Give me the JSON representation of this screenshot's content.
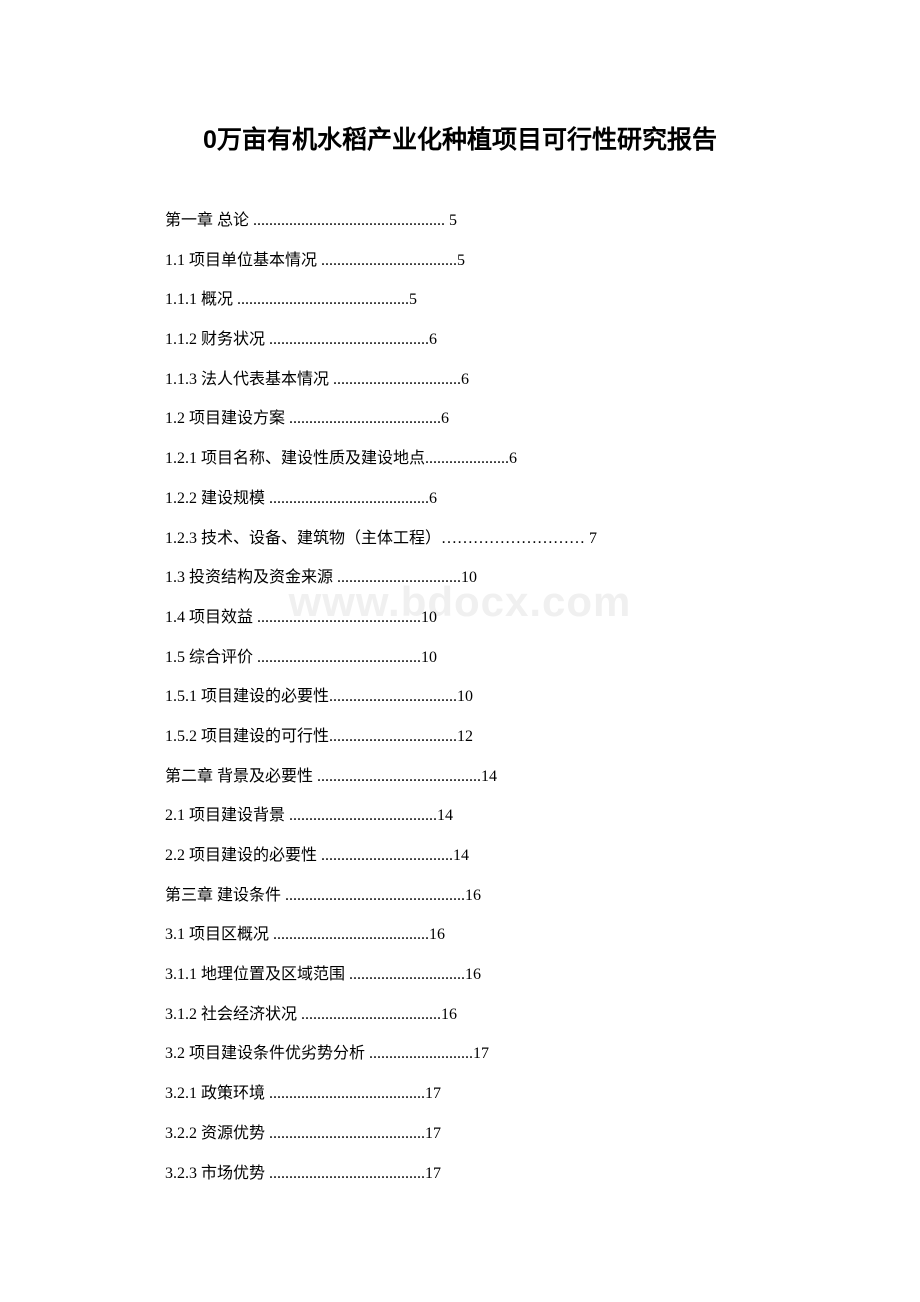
{
  "document": {
    "title": "0万亩有机水稻产业化种植项目可行性研究报告",
    "watermark": "www.bdocx.com",
    "background_color": "#ffffff",
    "text_color": "#000000",
    "watermark_color": "#f0f0f0",
    "title_fontsize": 25,
    "body_fontsize": 16
  },
  "toc": [
    {
      "text": "第一章 总论 ................................................ 5"
    },
    {
      "text": "1.1 项目单位基本情况 ..................................5"
    },
    {
      "text": "1.1.1 概况 ...........................................5"
    },
    {
      "text": "1.1.2 财务状况 ........................................6"
    },
    {
      "text": "1.1.3 法人代表基本情况 ................................6"
    },
    {
      "text": "1.2 项目建设方案 ......................................6"
    },
    {
      "text": "1.2.1 项目名称、建设性质及建设地点.....................6"
    },
    {
      "text": "1.2.2 建设规模 ........................................6"
    },
    {
      "text": "1.2.3 技术、设备、建筑物（主体工程）……………………… 7"
    },
    {
      "text": "1.3 投资结构及资金来源 ...............................10"
    },
    {
      "text": "1.4 项目效益 .........................................10"
    },
    {
      "text": "1.5 综合评价 .........................................10"
    },
    {
      "text": "1.5.1 项目建设的必要性................................10"
    },
    {
      "text": "1.5.2 项目建设的可行性................................12"
    },
    {
      "text": "第二章 背景及必要性 .........................................14"
    },
    {
      "text": "2.1 项目建设背景 .....................................14"
    },
    {
      "text": "2.2 项目建设的必要性 .................................14"
    },
    {
      "text": "第三章 建设条件 .............................................16"
    },
    {
      "text": "3.1 项目区概况 .......................................16"
    },
    {
      "text": "3.1.1 地理位置及区域范围 .............................16"
    },
    {
      "text": "3.1.2 社会经济状况 ...................................16"
    },
    {
      "text": "3.2 项目建设条件优劣势分析 ..........................17"
    },
    {
      "text": "3.2.1 政策环境 .......................................17"
    },
    {
      "text": "3.2.2 资源优势 .......................................17"
    },
    {
      "text": "3.2.3 市场优势 .......................................17"
    }
  ]
}
